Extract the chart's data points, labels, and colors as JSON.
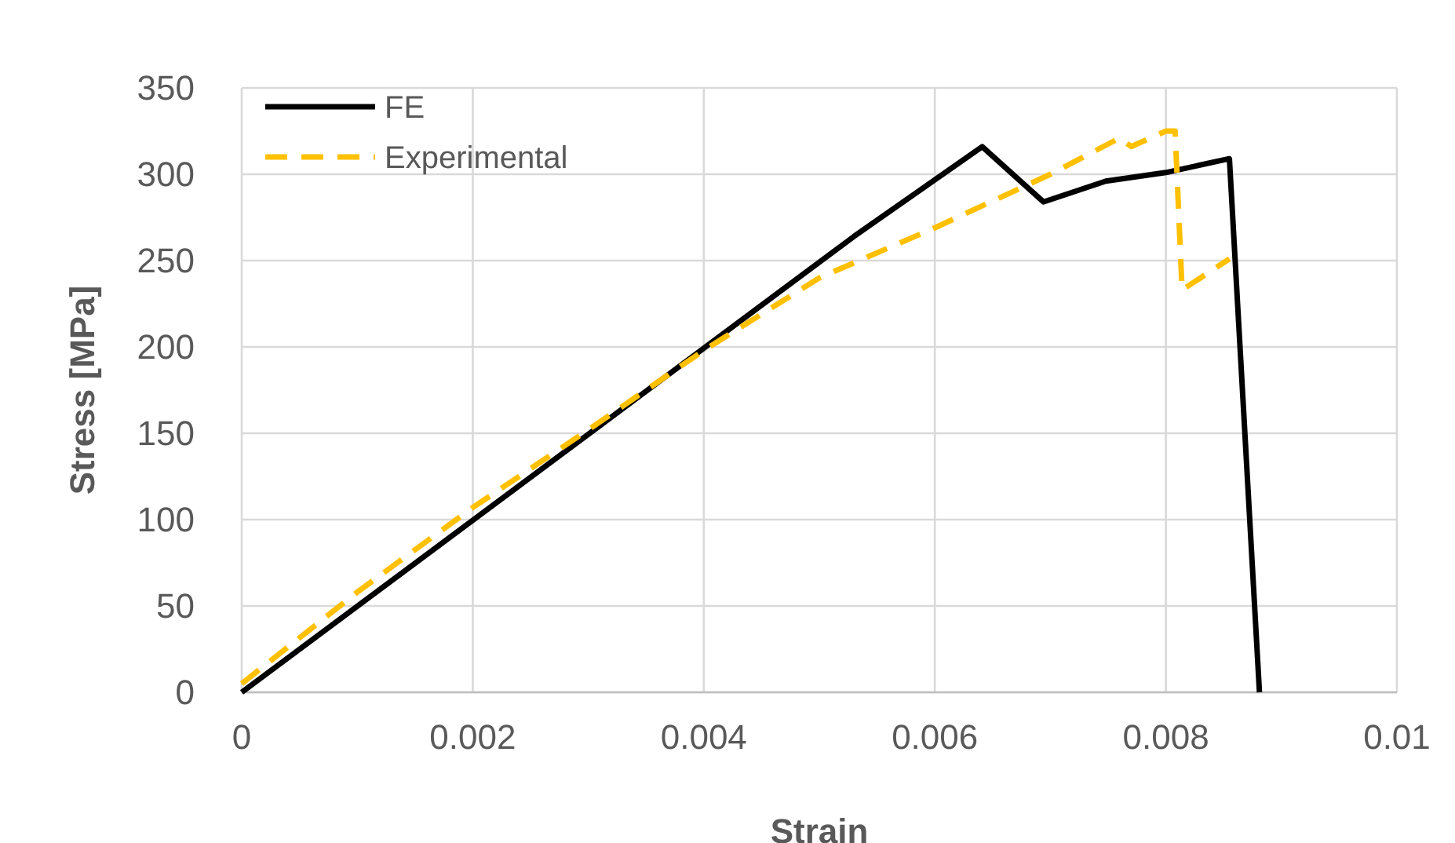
{
  "chart_data": {
    "type": "line",
    "xlabel": "Strain",
    "ylabel": "Stress [MPa]",
    "xlim": [
      0,
      0.01
    ],
    "ylim": [
      0,
      350
    ],
    "xticks": [
      0,
      0.002,
      0.004,
      0.006,
      0.008,
      0.01
    ],
    "yticks": [
      0,
      50,
      100,
      150,
      200,
      250,
      300,
      350
    ],
    "grid": true,
    "legend": "top left",
    "series": [
      {
        "name": "FE",
        "color": "#000000",
        "line_style": "solid",
        "x": [
          0,
          0.0053,
          0.00641,
          0.00694,
          0.00748,
          0.008,
          0.00855,
          0.00881
        ],
        "values": [
          0,
          264,
          316,
          284,
          296,
          301,
          309,
          0
        ]
      },
      {
        "name": "Experimental",
        "color": "#ffc000",
        "line_style": "dashed",
        "x": [
          0,
          0.001,
          0.002,
          0.003,
          0.004,
          0.005,
          0.006,
          0.007,
          0.0076,
          0.0077,
          0.008,
          0.00808,
          0.00814,
          0.00855
        ],
        "values": [
          5,
          58,
          107,
          152,
          198,
          240,
          269,
          300,
          321,
          316,
          325,
          325,
          233,
          251
        ]
      }
    ]
  }
}
